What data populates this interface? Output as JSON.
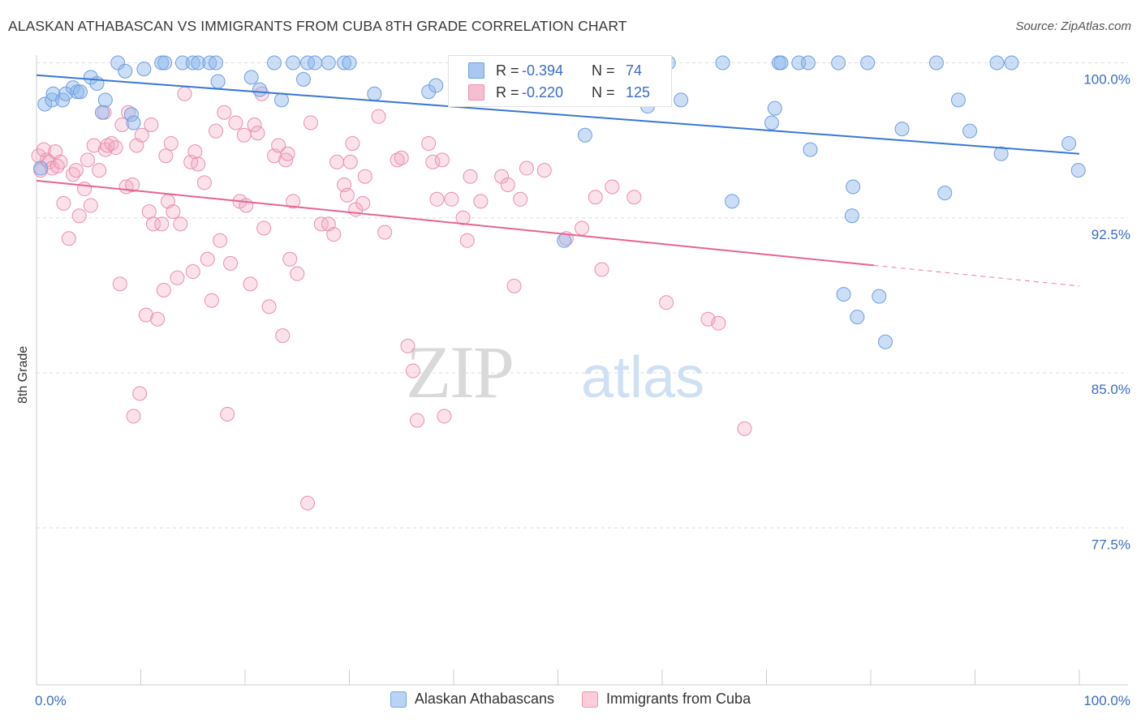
{
  "title": "ALASKAN ATHABASCAN VS IMMIGRANTS FROM CUBA 8TH GRADE CORRELATION CHART",
  "source": "Source: ZipAtlas.com",
  "watermark": {
    "zip": "ZIP",
    "atlas": "atlas"
  },
  "stats": {
    "r_label": "R =",
    "n_label": "N =",
    "rows": [
      {
        "r": "-0.394",
        "n": "74",
        "fill": "#a9c8f0",
        "stroke": "#6f9fe0"
      },
      {
        "r": "-0.220",
        "n": "125",
        "fill": "#f6bfd0",
        "stroke": "#ea8fae"
      }
    ]
  },
  "legend": [
    {
      "label": "Alaskan Athabascans",
      "fill": "#b8d3f4",
      "stroke": "#7aa6e2"
    },
    {
      "label": "Immigrants from Cuba",
      "fill": "#f9cdd9",
      "stroke": "#eb96b2"
    }
  ],
  "colors": {
    "blue": "#3a77d4",
    "pink": "#e8648f",
    "tick_text": "#3a6cc6",
    "grid": "#dddddd"
  },
  "chart_data": {
    "type": "scatter",
    "xlabel": "",
    "ylabel": "8th Grade",
    "xlim": [
      0,
      100
    ],
    "ylim": [
      70.0,
      101.2
    ],
    "x_tick_labels": [
      "0.0%",
      "100.0%"
    ],
    "y_ticks": [
      100.0,
      92.5,
      85.0,
      77.5
    ],
    "y_tick_labels": [
      "100.0%",
      "92.5%",
      "85.0%",
      "77.5%"
    ],
    "grid": true,
    "series": [
      {
        "name": "Alaskan Athabascans",
        "color": "#3a77d4",
        "trend": {
          "x": [
            0,
            100
          ],
          "y": [
            99.4,
            95.6
          ]
        },
        "points": [
          [
            0.4,
            94.9
          ],
          [
            0.8,
            98.0
          ],
          [
            1.5,
            98.2
          ],
          [
            1.6,
            98.5
          ],
          [
            2.5,
            98.2
          ],
          [
            2.8,
            98.5
          ],
          [
            3.5,
            98.8
          ],
          [
            3.9,
            98.6
          ],
          [
            4.2,
            98.6
          ],
          [
            5.2,
            99.3
          ],
          [
            5.8,
            99.0
          ],
          [
            6.3,
            97.6
          ],
          [
            6.6,
            98.2
          ],
          [
            7.8,
            100.0
          ],
          [
            8.5,
            99.6
          ],
          [
            9.1,
            97.5
          ],
          [
            9.3,
            97.1
          ],
          [
            10.3,
            99.7
          ],
          [
            12.0,
            100.0
          ],
          [
            12.3,
            100.0
          ],
          [
            14.0,
            100.0
          ],
          [
            15.0,
            100.0
          ],
          [
            15.5,
            100.0
          ],
          [
            16.6,
            100.0
          ],
          [
            17.2,
            100.0
          ],
          [
            17.4,
            99.1
          ],
          [
            20.6,
            99.3
          ],
          [
            21.4,
            98.7
          ],
          [
            22.8,
            100.0
          ],
          [
            23.5,
            98.2
          ],
          [
            24.6,
            100.0
          ],
          [
            25.6,
            99.2
          ],
          [
            26.0,
            100.0
          ],
          [
            26.7,
            100.0
          ],
          [
            28.0,
            100.0
          ],
          [
            29.5,
            100.0
          ],
          [
            30.0,
            100.0
          ],
          [
            32.4,
            98.5
          ],
          [
            37.6,
            98.6
          ],
          [
            38.3,
            98.9
          ],
          [
            40.6,
            100.0
          ],
          [
            45.6,
            100.0
          ],
          [
            50.3,
            100.0
          ],
          [
            50.6,
            91.4
          ],
          [
            52.6,
            96.5
          ],
          [
            57.0,
            100.0
          ],
          [
            58.6,
            97.9
          ],
          [
            60.6,
            100.0
          ],
          [
            61.8,
            98.2
          ],
          [
            65.8,
            100.0
          ],
          [
            66.7,
            93.3
          ],
          [
            70.5,
            97.1
          ],
          [
            70.8,
            97.8
          ],
          [
            71.2,
            100.0
          ],
          [
            71.4,
            100.0
          ],
          [
            73.1,
            100.0
          ],
          [
            74.0,
            100.0
          ],
          [
            74.2,
            95.8
          ],
          [
            76.9,
            100.0
          ],
          [
            77.4,
            88.8
          ],
          [
            78.3,
            94.0
          ],
          [
            78.2,
            92.6
          ],
          [
            78.7,
            87.7
          ],
          [
            79.7,
            100.0
          ],
          [
            80.8,
            88.7
          ],
          [
            81.4,
            86.5
          ],
          [
            83.0,
            96.8
          ],
          [
            86.3,
            100.0
          ],
          [
            87.1,
            93.7
          ],
          [
            88.4,
            98.2
          ],
          [
            89.5,
            96.7
          ],
          [
            92.1,
            100.0
          ],
          [
            92.5,
            95.6
          ],
          [
            93.5,
            100.0
          ],
          [
            99.0,
            96.1
          ],
          [
            99.9,
            94.8
          ]
        ]
      },
      {
        "name": "Immigrants from Cuba",
        "color": "#e8648f",
        "trend": {
          "x": [
            0,
            80.3
          ],
          "y": [
            94.3,
            90.2
          ],
          "dashed_to": [
            100,
            89.2
          ]
        },
        "points": [
          [
            0.2,
            95.5
          ],
          [
            0.4,
            94.8
          ],
          [
            0.7,
            95.8
          ],
          [
            1.0,
            95.3
          ],
          [
            1.2,
            95.2
          ],
          [
            1.5,
            94.9
          ],
          [
            1.8,
            95.7
          ],
          [
            2.0,
            95.0
          ],
          [
            2.3,
            95.2
          ],
          [
            2.6,
            93.2
          ],
          [
            3.1,
            91.5
          ],
          [
            3.5,
            94.6
          ],
          [
            3.8,
            94.8
          ],
          [
            4.1,
            92.6
          ],
          [
            4.6,
            93.9
          ],
          [
            4.9,
            95.3
          ],
          [
            5.2,
            93.1
          ],
          [
            5.5,
            96.0
          ],
          [
            6.0,
            94.8
          ],
          [
            6.5,
            97.6
          ],
          [
            6.6,
            95.8
          ],
          [
            6.8,
            96.0
          ],
          [
            7.2,
            96.1
          ],
          [
            7.6,
            95.9
          ],
          [
            8.0,
            89.3
          ],
          [
            8.2,
            97.0
          ],
          [
            8.6,
            94.0
          ],
          [
            8.8,
            97.6
          ],
          [
            9.2,
            94.1
          ],
          [
            9.3,
            82.9
          ],
          [
            9.6,
            96.0
          ],
          [
            9.9,
            84.0
          ],
          [
            10.1,
            96.5
          ],
          [
            10.5,
            87.8
          ],
          [
            10.8,
            92.8
          ],
          [
            11.0,
            97.0
          ],
          [
            11.2,
            92.2
          ],
          [
            11.6,
            87.6
          ],
          [
            12.0,
            92.2
          ],
          [
            12.2,
            89.0
          ],
          [
            12.4,
            95.5
          ],
          [
            12.6,
            93.3
          ],
          [
            12.9,
            96.1
          ],
          [
            13.1,
            92.8
          ],
          [
            13.5,
            89.6
          ],
          [
            13.8,
            92.2
          ],
          [
            14.2,
            98.5
          ],
          [
            14.8,
            95.2
          ],
          [
            15.0,
            89.9
          ],
          [
            15.2,
            95.7
          ],
          [
            15.5,
            95.1
          ],
          [
            16.1,
            94.2
          ],
          [
            16.4,
            90.5
          ],
          [
            16.8,
            88.5
          ],
          [
            17.2,
            96.7
          ],
          [
            17.6,
            91.4
          ],
          [
            18.0,
            97.6
          ],
          [
            18.3,
            83.0
          ],
          [
            18.6,
            90.3
          ],
          [
            19.1,
            97.1
          ],
          [
            19.5,
            93.3
          ],
          [
            19.9,
            96.5
          ],
          [
            20.1,
            93.1
          ],
          [
            20.5,
            89.3
          ],
          [
            20.9,
            97.0
          ],
          [
            21.2,
            96.6
          ],
          [
            21.6,
            98.5
          ],
          [
            21.8,
            92.0
          ],
          [
            22.3,
            88.2
          ],
          [
            22.8,
            95.5
          ],
          [
            23.2,
            96.0
          ],
          [
            23.6,
            86.8
          ],
          [
            23.9,
            95.3
          ],
          [
            24.1,
            95.6
          ],
          [
            24.3,
            90.5
          ],
          [
            24.6,
            93.3
          ],
          [
            25.0,
            89.8
          ],
          [
            26.0,
            78.7
          ],
          [
            26.3,
            97.1
          ],
          [
            27.3,
            92.2
          ],
          [
            28.0,
            92.2
          ],
          [
            28.5,
            91.7
          ],
          [
            28.8,
            95.2
          ],
          [
            29.5,
            94.1
          ],
          [
            29.8,
            93.6
          ],
          [
            30.1,
            95.2
          ],
          [
            30.3,
            96.1
          ],
          [
            30.6,
            92.9
          ],
          [
            31.3,
            93.2
          ],
          [
            31.5,
            94.5
          ],
          [
            32.8,
            97.4
          ],
          [
            33.4,
            91.8
          ],
          [
            34.6,
            95.3
          ],
          [
            35.0,
            95.4
          ],
          [
            35.6,
            86.3
          ],
          [
            36.1,
            85.1
          ],
          [
            36.5,
            82.7
          ],
          [
            37.6,
            96.1
          ],
          [
            38.0,
            95.2
          ],
          [
            38.4,
            93.4
          ],
          [
            38.9,
            95.3
          ],
          [
            39.1,
            82.9
          ],
          [
            39.8,
            93.4
          ],
          [
            40.9,
            92.5
          ],
          [
            41.3,
            91.4
          ],
          [
            41.6,
            94.5
          ],
          [
            42.6,
            93.3
          ],
          [
            44.6,
            94.5
          ],
          [
            45.2,
            94.1
          ],
          [
            45.8,
            89.2
          ],
          [
            46.4,
            93.4
          ],
          [
            47.0,
            94.9
          ],
          [
            48.7,
            94.8
          ],
          [
            50.8,
            91.5
          ],
          [
            52.3,
            92.0
          ],
          [
            53.6,
            93.5
          ],
          [
            54.2,
            90.0
          ],
          [
            55.2,
            94.0
          ],
          [
            57.3,
            93.5
          ],
          [
            60.4,
            88.4
          ],
          [
            64.4,
            87.6
          ],
          [
            65.4,
            87.4
          ],
          [
            67.9,
            82.3
          ]
        ]
      }
    ]
  }
}
